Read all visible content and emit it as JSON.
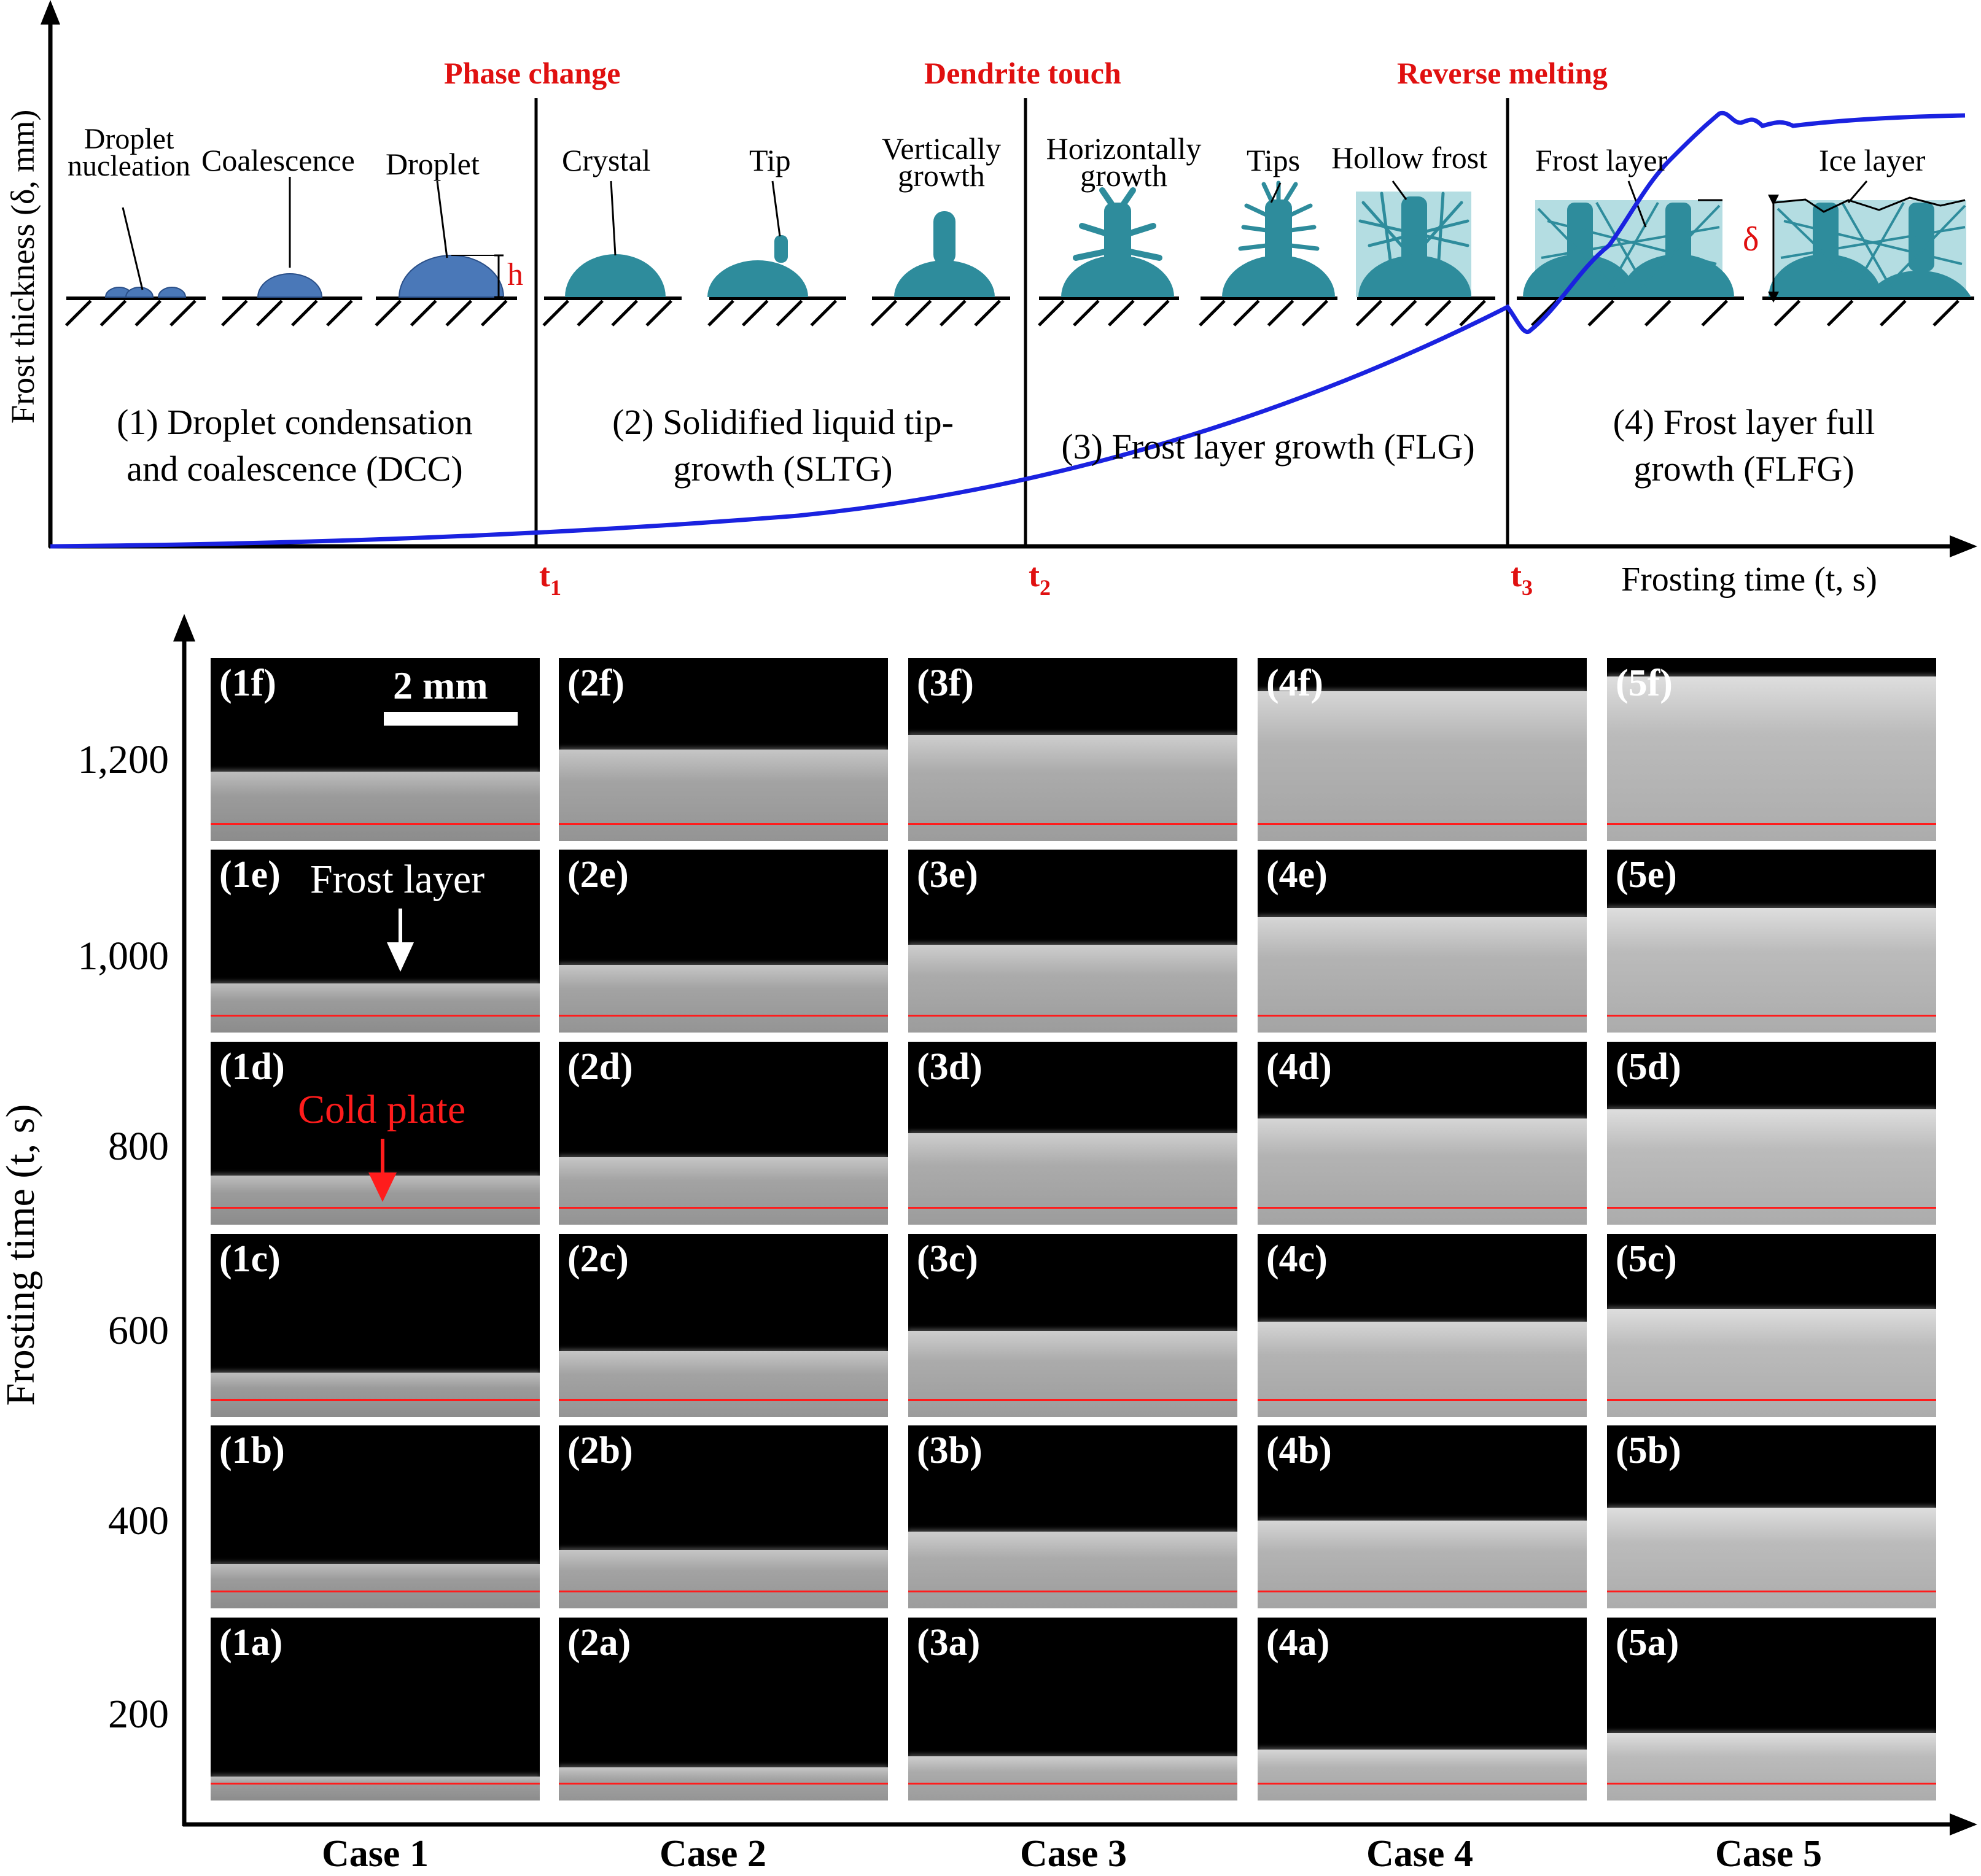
{
  "top": {
    "y_axis_label": "Frost thickness (δ, mm)",
    "x_axis_label": "Frosting time (t, s)",
    "events": [
      "Phase change",
      "Dendrite touch",
      "Reverse melting"
    ],
    "time_marks": [
      "t",
      "t",
      "t"
    ],
    "time_subs": [
      "1",
      "2",
      "3"
    ],
    "stages": [
      {
        "line1": "(1) Droplet condensation",
        "line2": "and coalescence (DCC)"
      },
      {
        "line1": "(2) Solidified liquid tip-",
        "line2": "growth (SLTG)"
      },
      {
        "line1": "(3) Frost layer growth (FLG)",
        "line2": ""
      },
      {
        "line1": "(4) Frost layer full",
        "line2": "growth (FLFG)"
      }
    ],
    "sketch_labels": {
      "nucleation_1": "Droplet",
      "nucleation_2": "nucleation",
      "coalescence": "Coalescence",
      "droplet": "Droplet",
      "h": "h",
      "crystal": "Crystal",
      "tip": "Tip",
      "vertical_1": "Vertically",
      "vertical_2": "growth",
      "horizontal_1": "Horizontally",
      "horizontal_2": "growth",
      "tips": "Tips",
      "hollow": "Hollow frost",
      "frost_layer": "Frost layer",
      "ice_layer": "Ice layer",
      "delta": "δ"
    },
    "colors": {
      "curve": "#1a22e0",
      "events": "#e01010",
      "droplet": "#4a78b8",
      "crystal": "#2e8c9c",
      "frost_fill": "#b4dde2"
    }
  },
  "bottom": {
    "y_axis_label": "Frosting time (t, s)",
    "y_ticks": [
      "1,200",
      "1,000",
      "800",
      "600",
      "400",
      "200"
    ],
    "cases": [
      "Case 1",
      "Case 2",
      "Case 3",
      "Case 4",
      "Case 5"
    ],
    "row_suffixes": [
      "f",
      "e",
      "d",
      "c",
      "b",
      "a"
    ],
    "scale_bar": "2 mm",
    "annotation_frost": "Frost layer",
    "annotation_plate": "Cold plate",
    "frost_fraction": [
      [
        0.38,
        0.5,
        0.58,
        0.82,
        0.9
      ],
      [
        0.27,
        0.37,
        0.48,
        0.63,
        0.68
      ],
      [
        0.27,
        0.37,
        0.5,
        0.58,
        0.63
      ],
      [
        0.24,
        0.36,
        0.47,
        0.52,
        0.59
      ],
      [
        0.24,
        0.32,
        0.42,
        0.48,
        0.55
      ],
      [
        0.13,
        0.18,
        0.24,
        0.28,
        0.37
      ]
    ]
  }
}
